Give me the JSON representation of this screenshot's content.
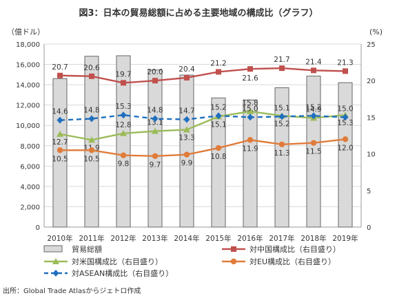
{
  "title": "図3：日本の貿易総額に占める主要地域の構成比（グラフ）",
  "source": "出所：Global Trade Atlasからジェトロ作成",
  "colors": {
    "bar_fill": "#d9d9d9",
    "bar_stroke": "#666666",
    "china": "#c0504d",
    "usa": "#9bbb59",
    "eu": "#e07b39",
    "asean": "#1f6fbf",
    "grid": "#d9d9d9"
  },
  "chart_data": {
    "type": "bar",
    "x": [
      "2010年",
      "2011年",
      "2012年",
      "2013年",
      "2014年",
      "2015年",
      "2016年",
      "2017年",
      "2018年",
      "2019年"
    ],
    "left_axis": {
      "unit_label": "（億ドル）",
      "ylim": [
        0,
        18000
      ],
      "ticks": [
        "0",
        "2,000",
        "4,000",
        "6,000",
        "8,000",
        "10,000",
        "12,000",
        "14,000",
        "16,000",
        "18,000"
      ]
    },
    "right_axis": {
      "unit_label": "(%)",
      "ylim": [
        0,
        25
      ],
      "ticks": [
        "0",
        "5",
        "10",
        "15",
        "20",
        "25"
      ]
    },
    "grid": true,
    "legend_position": "bottom",
    "series": [
      {
        "name": "貿易総額",
        "kind": "bar",
        "axis": "left",
        "values": [
          14600,
          16800,
          16850,
          15450,
          14950,
          12700,
          12500,
          13700,
          14850,
          14200
        ]
      },
      {
        "name": "対中国構成比（右目盛り）",
        "kind": "line",
        "axis": "right",
        "marker": "square",
        "dash": "solid",
        "values": [
          20.7,
          20.6,
          19.7,
          20.0,
          20.4,
          21.2,
          21.6,
          21.7,
          21.4,
          21.3
        ],
        "labels": [
          "20.7",
          "20.6",
          "19.7",
          "20.0",
          "20.4",
          "21.2",
          "21.6",
          "21.7",
          "21.4",
          "21.3"
        ]
      },
      {
        "name": "対米国構成比（右目盛り）",
        "kind": "line",
        "axis": "right",
        "marker": "triangle",
        "dash": "solid",
        "values": [
          12.7,
          11.9,
          12.8,
          13.1,
          13.3,
          15.1,
          15.8,
          15.2,
          14.9,
          15.3
        ],
        "labels": [
          "12.7",
          "11.9",
          "12.8",
          "13.1",
          "13.3",
          "15.1",
          "15.8",
          "15.2",
          "14.9",
          "15.3"
        ]
      },
      {
        "name": "対EU構成比（右目盛り）",
        "kind": "line",
        "axis": "right",
        "marker": "circle",
        "dash": "solid",
        "values": [
          10.5,
          10.5,
          9.8,
          9.7,
          9.9,
          10.8,
          11.9,
          11.3,
          11.5,
          12.0
        ],
        "labels": [
          "10.5",
          "10.5",
          "9.8",
          "9.7",
          "9.9",
          "10.8",
          "11.9",
          "11.3",
          "11.5",
          "12.0"
        ]
      },
      {
        "name": "対ASEAN構成比（右目盛り）",
        "kind": "line",
        "axis": "right",
        "marker": "diamond",
        "dash": "dashed",
        "values": [
          14.6,
          14.8,
          15.3,
          14.8,
          14.7,
          15.2,
          15.0,
          15.1,
          15.2,
          15.0
        ],
        "labels": [
          "14.6",
          "14.8",
          "15.3",
          "14.8",
          "14.7",
          "15.2",
          "15.0",
          "15.1",
          "15.2",
          "15.0"
        ]
      }
    ]
  }
}
